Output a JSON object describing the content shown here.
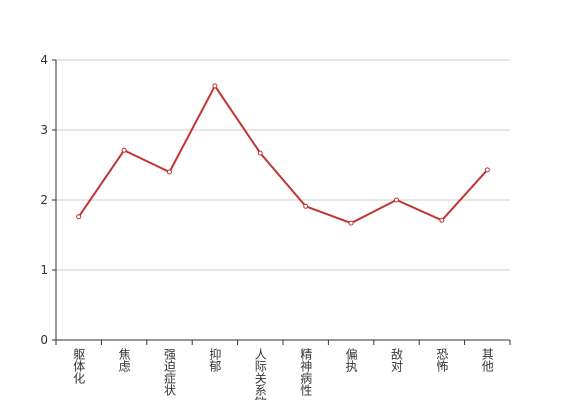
{
  "chart_data": {
    "type": "line",
    "categories": [
      "躯体化",
      "焦虑",
      "强迫症状",
      "抑郁",
      "人际关系敏感",
      "精神病性",
      "偏执",
      "敌对",
      "恐怖",
      "其他"
    ],
    "values": [
      1.76,
      2.71,
      2.4,
      3.63,
      2.67,
      1.91,
      1.67,
      2.0,
      1.71,
      2.43
    ],
    "color": "#c23531",
    "ylim": [
      0,
      4
    ],
    "yticks": [
      0,
      1,
      2,
      3,
      4
    ],
    "grid": true
  }
}
